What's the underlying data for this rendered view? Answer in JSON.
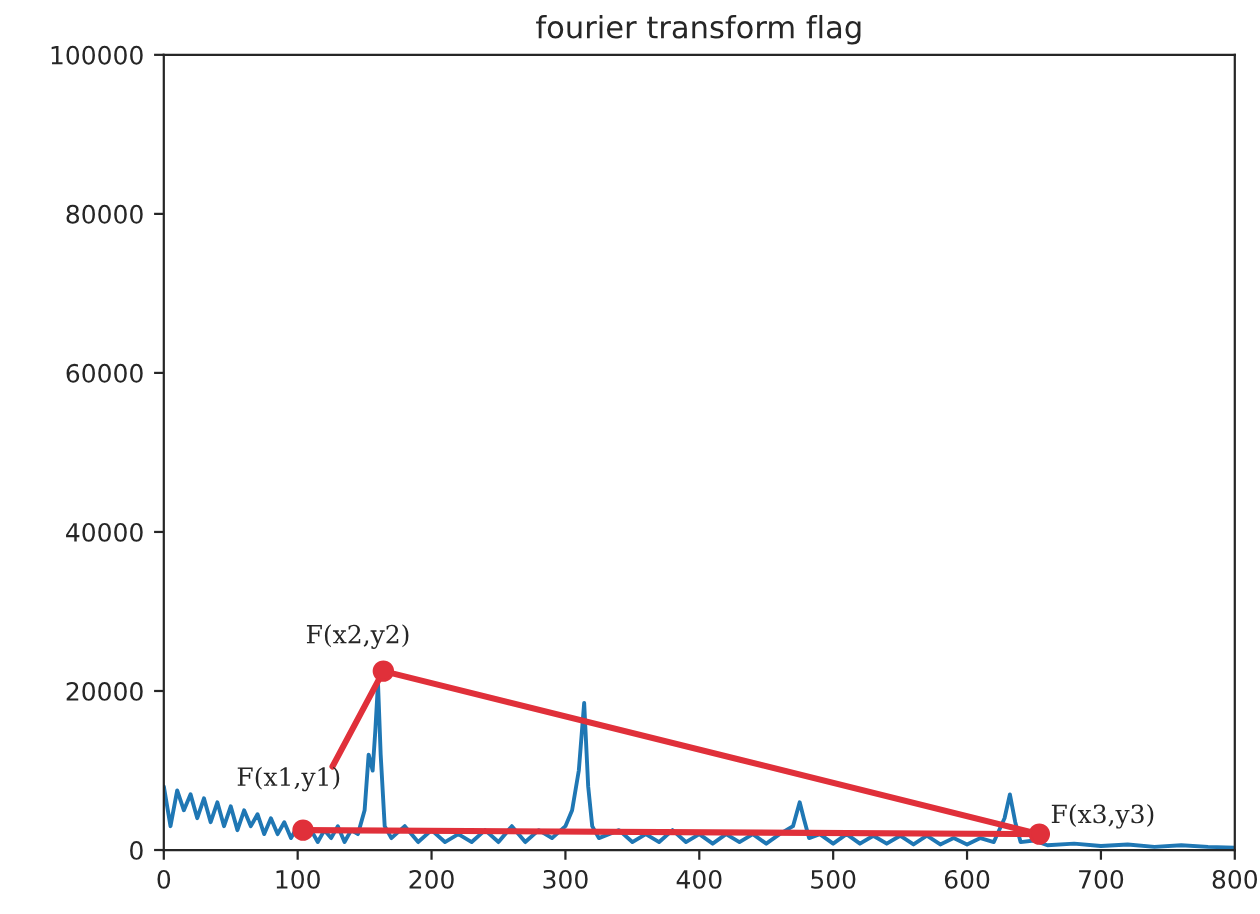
{
  "chart_data": {
    "type": "line",
    "title": "fourier transform flag",
    "xlim": [
      0,
      800
    ],
    "ylim": [
      0,
      100000
    ],
    "xticks": [
      0,
      100,
      200,
      300,
      400,
      500,
      600,
      700,
      800
    ],
    "yticks": [
      0,
      20000,
      40000,
      60000,
      80000,
      100000
    ],
    "series": [
      {
        "color": "#1f77b4",
        "x": [
          0,
          5,
          10,
          15,
          20,
          25,
          30,
          35,
          40,
          45,
          50,
          55,
          60,
          65,
          70,
          75,
          80,
          85,
          90,
          95,
          100,
          105,
          110,
          115,
          120,
          125,
          130,
          135,
          140,
          145,
          150,
          153,
          156,
          158,
          160,
          162,
          165,
          170,
          180,
          190,
          200,
          210,
          220,
          230,
          240,
          250,
          260,
          270,
          280,
          290,
          300,
          305,
          310,
          314,
          317,
          320,
          325,
          340,
          350,
          360,
          370,
          380,
          390,
          400,
          410,
          420,
          430,
          440,
          450,
          460,
          470,
          475,
          478,
          482,
          490,
          500,
          510,
          520,
          530,
          540,
          550,
          560,
          570,
          580,
          590,
          600,
          610,
          620,
          628,
          632,
          636,
          640,
          650,
          660,
          680,
          700,
          720,
          740,
          760,
          780,
          800
        ],
        "values": [
          8000,
          3000,
          7500,
          5000,
          7000,
          4000,
          6500,
          3500,
          6000,
          3000,
          5500,
          2500,
          5000,
          3000,
          4500,
          2000,
          4000,
          2000,
          3500,
          1500,
          3000,
          1500,
          2500,
          1000,
          2500,
          1500,
          3000,
          1000,
          2500,
          2000,
          5000,
          12000,
          10000,
          15000,
          21000,
          12000,
          3000,
          1500,
          3000,
          1000,
          2500,
          1000,
          2000,
          1000,
          2500,
          1000,
          3000,
          1000,
          2500,
          1500,
          3000,
          5000,
          10000,
          18500,
          8000,
          3000,
          1500,
          2500,
          1000,
          2000,
          1000,
          2500,
          1000,
          2000,
          800,
          2000,
          1000,
          2000,
          800,
          2000,
          3000,
          6000,
          4000,
          1500,
          2000,
          800,
          2000,
          800,
          1800,
          800,
          1800,
          700,
          1800,
          700,
          1500,
          700,
          1500,
          1000,
          4000,
          7000,
          3500,
          1000,
          1200,
          600,
          800,
          500,
          700,
          400,
          600,
          400,
          300
        ]
      },
      {
        "color": "#e0303a",
        "x": [
          126,
          164,
          654,
          104
        ],
        "values": [
          10500,
          22500,
          2000,
          2500
        ]
      },
      {
        "type": "scatter",
        "color": "#e0303a",
        "x": [
          104,
          164,
          654
        ],
        "values": [
          2500,
          22500,
          2000
        ],
        "marker": "circle"
      }
    ],
    "annotations": [
      {
        "text": "F(x1,y1)",
        "x": 104,
        "y": 2500
      },
      {
        "text": "F(x2,y2)",
        "x": 164,
        "y": 22500
      },
      {
        "text": "F(x3,y3)",
        "x": 654,
        "y": 2000
      }
    ]
  }
}
